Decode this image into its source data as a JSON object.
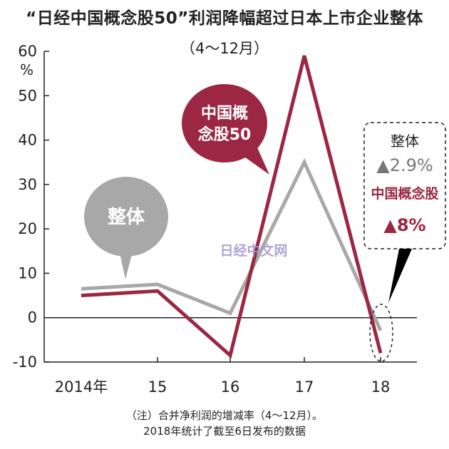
{
  "title": "“日经中国概念股50”利润降幅超过日本上市企业整体",
  "subtitle": "（4～12月）",
  "unit": "%",
  "notes": [
    "（注）合并净利润的增减率（4～12月）。",
    "2018年统计了截至6日发布的数据"
  ],
  "watermark": "日经中文网",
  "callouts": {
    "overall": "整体",
    "china_line1": "中国概",
    "china_line2": "念股50",
    "box_overall": "整体",
    "box_overall_value": "▲2.9%",
    "box_china": "中国概念股",
    "box_china_value": "▲8%"
  },
  "colors": {
    "overall": "#a8a8a8",
    "china": "#9b2742",
    "axis": "#222222"
  },
  "chart_data": {
    "type": "line",
    "categories": [
      "2014年",
      "15",
      "16",
      "17",
      "18"
    ],
    "y_ticks": [
      60,
      50,
      40,
      30,
      20,
      10,
      0,
      -10
    ],
    "ylim": [
      -10,
      60
    ],
    "series": [
      {
        "name": "整体",
        "values": [
          6.5,
          7.5,
          1,
          35,
          -2.9
        ]
      },
      {
        "name": "中国概念股50",
        "values": [
          5,
          6,
          -8.5,
          59,
          -8
        ]
      }
    ]
  }
}
